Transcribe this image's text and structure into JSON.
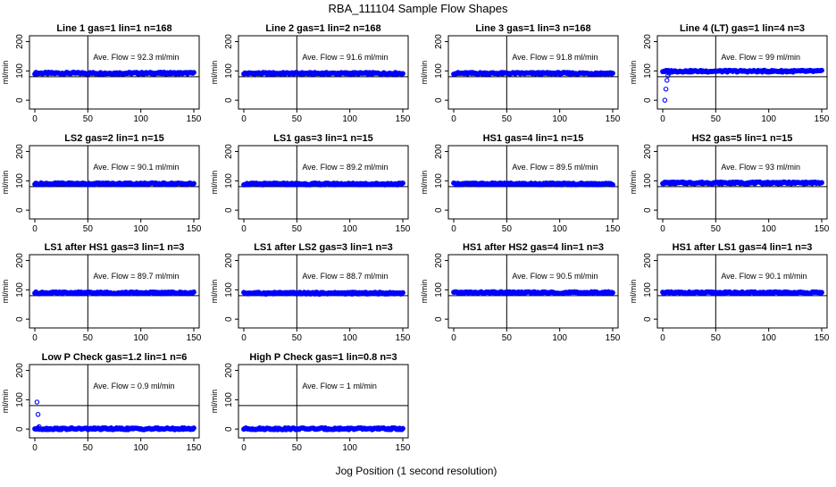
{
  "figure": {
    "title": "RBA_111104  Sample Flow Shapes",
    "xlabel": "Jog Position (1 second resolution)",
    "point_color": "#0000ff"
  },
  "chart_data": [
    {
      "type": "scatter",
      "title": "Line 1 gas=1 lin=1 n=168",
      "ylabel": "ml/min",
      "xlim": [
        0,
        150
      ],
      "ylim": [
        -30,
        220
      ],
      "xticks": [
        0,
        50,
        100,
        150
      ],
      "yticks": [
        0,
        100,
        200
      ],
      "vline_x": 50,
      "hline_y": 80,
      "annotation": "Ave. Flow =  92.3  ml/min",
      "series": [
        {
          "x_range": [
            0,
            150
          ],
          "start": [],
          "level": 92.3
        }
      ]
    },
    {
      "type": "scatter",
      "title": "Line 2 gas=1 lin=2 n=168",
      "ylabel": "ml/min",
      "xlim": [
        0,
        150
      ],
      "ylim": [
        -30,
        220
      ],
      "xticks": [
        0,
        50,
        100,
        150
      ],
      "yticks": [
        0,
        100,
        200
      ],
      "vline_x": 50,
      "hline_y": 80,
      "annotation": "Ave. Flow =  91.6  ml/min",
      "series": [
        {
          "x_range": [
            0,
            150
          ],
          "start": [],
          "level": 91.6
        }
      ]
    },
    {
      "type": "scatter",
      "title": "Line 3 gas=1 lin=3 n=168",
      "ylabel": "ml/min",
      "xlim": [
        0,
        150
      ],
      "ylim": [
        -30,
        220
      ],
      "xticks": [
        0,
        50,
        100,
        150
      ],
      "yticks": [
        0,
        100,
        200
      ],
      "vline_x": 50,
      "hline_y": 80,
      "annotation": "Ave. Flow =  91.8  ml/min",
      "series": [
        {
          "x_range": [
            0,
            150
          ],
          "start": [],
          "level": 91.8
        }
      ]
    },
    {
      "type": "scatter",
      "title": "Line 4 (LT) gas=1 lin=4 n=3",
      "ylabel": "ml/min",
      "xlim": [
        0,
        150
      ],
      "ylim": [
        -30,
        220
      ],
      "xticks": [
        0,
        50,
        100,
        150
      ],
      "yticks": [
        0,
        100,
        200
      ],
      "vline_x": 50,
      "hline_y": 80,
      "annotation": "Ave. Flow =  99  ml/min",
      "series": [
        {
          "x_range": [
            0,
            150
          ],
          "start": [
            [
              2,
              0
            ],
            [
              3,
              38
            ],
            [
              4,
              68
            ],
            [
              5,
              84
            ],
            [
              6,
              92
            ]
          ],
          "level": 99
        }
      ]
    },
    {
      "type": "scatter",
      "title": "LS2 gas=2 lin=1 n=15",
      "ylabel": "ml/min",
      "xlim": [
        0,
        150
      ],
      "ylim": [
        -30,
        220
      ],
      "xticks": [
        0,
        50,
        100,
        150
      ],
      "yticks": [
        0,
        100,
        200
      ],
      "vline_x": 50,
      "hline_y": 80,
      "annotation": "Ave. Flow =  90.1  ml/min",
      "series": [
        {
          "x_range": [
            0,
            150
          ],
          "start": [],
          "level": 90.1
        }
      ]
    },
    {
      "type": "scatter",
      "title": "LS1 gas=3 lin=1 n=15",
      "ylabel": "ml/min",
      "xlim": [
        0,
        150
      ],
      "ylim": [
        -30,
        220
      ],
      "xticks": [
        0,
        50,
        100,
        150
      ],
      "yticks": [
        0,
        100,
        200
      ],
      "vline_x": 50,
      "hline_y": 80,
      "annotation": "Ave. Flow =  89.2  ml/min",
      "series": [
        {
          "x_range": [
            0,
            150
          ],
          "start": [],
          "level": 89.2
        }
      ]
    },
    {
      "type": "scatter",
      "title": "HS1 gas=4 lin=1 n=15",
      "ylabel": "ml/min",
      "xlim": [
        0,
        150
      ],
      "ylim": [
        -30,
        220
      ],
      "xticks": [
        0,
        50,
        100,
        150
      ],
      "yticks": [
        0,
        100,
        200
      ],
      "vline_x": 50,
      "hline_y": 80,
      "annotation": "Ave. Flow =  89.5  ml/min",
      "series": [
        {
          "x_range": [
            0,
            150
          ],
          "start": [],
          "level": 89.5
        }
      ]
    },
    {
      "type": "scatter",
      "title": "HS2 gas=5 lin=1 n=15",
      "ylabel": "ml/min",
      "xlim": [
        0,
        150
      ],
      "ylim": [
        -30,
        220
      ],
      "xticks": [
        0,
        50,
        100,
        150
      ],
      "yticks": [
        0,
        100,
        200
      ],
      "vline_x": 50,
      "hline_y": 80,
      "annotation": "Ave. Flow =  93  ml/min",
      "series": [
        {
          "x_range": [
            0,
            150
          ],
          "start": [],
          "level": 93
        }
      ]
    },
    {
      "type": "scatter",
      "title": "LS1 after HS1 gas=3 lin=1 n=3",
      "ylabel": "ml/min",
      "xlim": [
        0,
        150
      ],
      "ylim": [
        -30,
        220
      ],
      "xticks": [
        0,
        50,
        100,
        150
      ],
      "yticks": [
        0,
        100,
        200
      ],
      "vline_x": 50,
      "hline_y": 80,
      "annotation": "Ave. Flow =  89.7  ml/min",
      "series": [
        {
          "x_range": [
            0,
            150
          ],
          "start": [],
          "level": 89.7
        }
      ]
    },
    {
      "type": "scatter",
      "title": "LS1 after LS2 gas=3 lin=1 n=3",
      "ylabel": "ml/min",
      "xlim": [
        0,
        150
      ],
      "ylim": [
        -30,
        220
      ],
      "xticks": [
        0,
        50,
        100,
        150
      ],
      "yticks": [
        0,
        100,
        200
      ],
      "vline_x": 50,
      "hline_y": 80,
      "annotation": "Ave. Flow =  88.7  ml/min",
      "series": [
        {
          "x_range": [
            0,
            150
          ],
          "start": [],
          "level": 88.7
        }
      ]
    },
    {
      "type": "scatter",
      "title": "HS1 after HS2 gas=4 lin=1 n=3",
      "ylabel": "ml/min",
      "xlim": [
        0,
        150
      ],
      "ylim": [
        -30,
        220
      ],
      "xticks": [
        0,
        50,
        100,
        150
      ],
      "yticks": [
        0,
        100,
        200
      ],
      "vline_x": 50,
      "hline_y": 80,
      "annotation": "Ave. Flow =  90.5  ml/min",
      "series": [
        {
          "x_range": [
            0,
            150
          ],
          "start": [],
          "level": 90.5
        }
      ]
    },
    {
      "type": "scatter",
      "title": "HS1 after LS1 gas=4 lin=1 n=3",
      "ylabel": "ml/min",
      "xlim": [
        0,
        150
      ],
      "ylim": [
        -30,
        220
      ],
      "xticks": [
        0,
        50,
        100,
        150
      ],
      "yticks": [
        0,
        100,
        200
      ],
      "vline_x": 50,
      "hline_y": 80,
      "annotation": "Ave. Flow =  90.1  ml/min",
      "series": [
        {
          "x_range": [
            0,
            150
          ],
          "start": [],
          "level": 90.1
        }
      ]
    },
    {
      "type": "scatter",
      "title": "Low P Check gas=1.2 lin=1 n=6",
      "ylabel": "ml/min",
      "xlim": [
        0,
        150
      ],
      "ylim": [
        -30,
        220
      ],
      "xticks": [
        0,
        50,
        100,
        150
      ],
      "yticks": [
        0,
        100,
        200
      ],
      "vline_x": 50,
      "hline_y": 80,
      "annotation": "Ave. Flow =  0.9  ml/min",
      "series": [
        {
          "x_range": [
            0,
            150
          ],
          "start": [
            [
              2,
              92
            ],
            [
              3,
              50
            ],
            [
              4,
              8
            ]
          ],
          "level": 0.9
        }
      ]
    },
    {
      "type": "scatter",
      "title": "High P Check gas=1 lin=0.8 n=3",
      "ylabel": "ml/min",
      "xlim": [
        0,
        150
      ],
      "ylim": [
        -30,
        220
      ],
      "xticks": [
        0,
        50,
        100,
        150
      ],
      "yticks": [
        0,
        100,
        200
      ],
      "vline_x": 50,
      "hline_y": 80,
      "annotation": "Ave. Flow =  1  ml/min",
      "series": [
        {
          "x_range": [
            0,
            150
          ],
          "start": [],
          "level": 1
        }
      ]
    }
  ]
}
